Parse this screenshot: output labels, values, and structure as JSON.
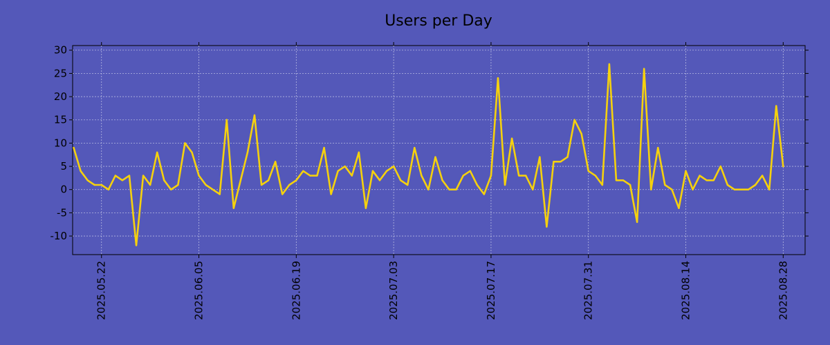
{
  "chart_data": {
    "type": "line",
    "title": "Users per Day",
    "xlabel": "",
    "ylabel": "",
    "x_start": "2025-05-18",
    "x_end": "2025-08-31",
    "x_ticks": [
      "2025.05.22",
      "2025.06.05",
      "2025.06.19",
      "2025.07.03",
      "2025.07.17",
      "2025.07.31",
      "2025.08.14",
      "2025.08.28"
    ],
    "ylim": [
      -14,
      31
    ],
    "y_ticks": [
      -10,
      -5,
      0,
      5,
      10,
      15,
      20,
      25,
      30
    ],
    "grid": true,
    "series": [
      {
        "color": "#f5d10e",
        "values": [
          9,
          4,
          2,
          1,
          1,
          0,
          3,
          2,
          3,
          -12,
          3,
          1,
          8,
          2,
          0,
          1,
          10,
          8,
          3,
          1,
          0,
          -1,
          15,
          -4,
          2,
          8,
          16,
          1,
          2,
          6,
          -1,
          1,
          2,
          4,
          3,
          3,
          9,
          -1,
          4,
          5,
          3,
          8,
          -4,
          4,
          2,
          4,
          5,
          2,
          1,
          9,
          3,
          0,
          7,
          2,
          0,
          0,
          3,
          4,
          1,
          -1,
          3,
          24,
          1,
          11,
          3,
          3,
          0,
          7,
          -8,
          6,
          6,
          7,
          15,
          12,
          4,
          3,
          1,
          27,
          2,
          2,
          1,
          -7,
          26,
          0,
          9,
          1,
          0,
          -4,
          4,
          0,
          3,
          2,
          2,
          5,
          1,
          0,
          0,
          0,
          1,
          3,
          0,
          18,
          5
        ]
      }
    ]
  }
}
